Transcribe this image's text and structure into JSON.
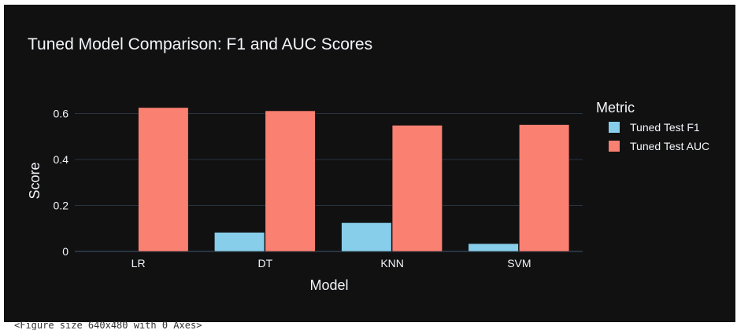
{
  "chart_data": {
    "type": "bar",
    "title": "Tuned Model Comparison: F1 and AUC Scores",
    "xlabel": "Model",
    "ylabel": "Score",
    "categories": [
      "LR",
      "DT",
      "KNN",
      "SVM"
    ],
    "series": [
      {
        "name": "Tuned Test F1",
        "values": [
          0.0,
          0.083,
          0.125,
          0.034
        ],
        "color": "#87CEEB"
      },
      {
        "name": "Tuned Test AUC",
        "values": [
          0.626,
          0.612,
          0.549,
          0.552
        ],
        "color": "#FA8072"
      }
    ],
    "ylim": [
      0,
      0.66
    ],
    "yticks": [
      0,
      0.2,
      0.4,
      0.6
    ],
    "ytick_labels": [
      "0",
      "0.2",
      "0.4",
      "0.6"
    ],
    "grid": true,
    "legend_title": "Metric",
    "legend_position": "right",
    "background": "#111111",
    "gridline_color": "#283442"
  },
  "console_text": "<Figure size 640x480 with 0 Axes>"
}
